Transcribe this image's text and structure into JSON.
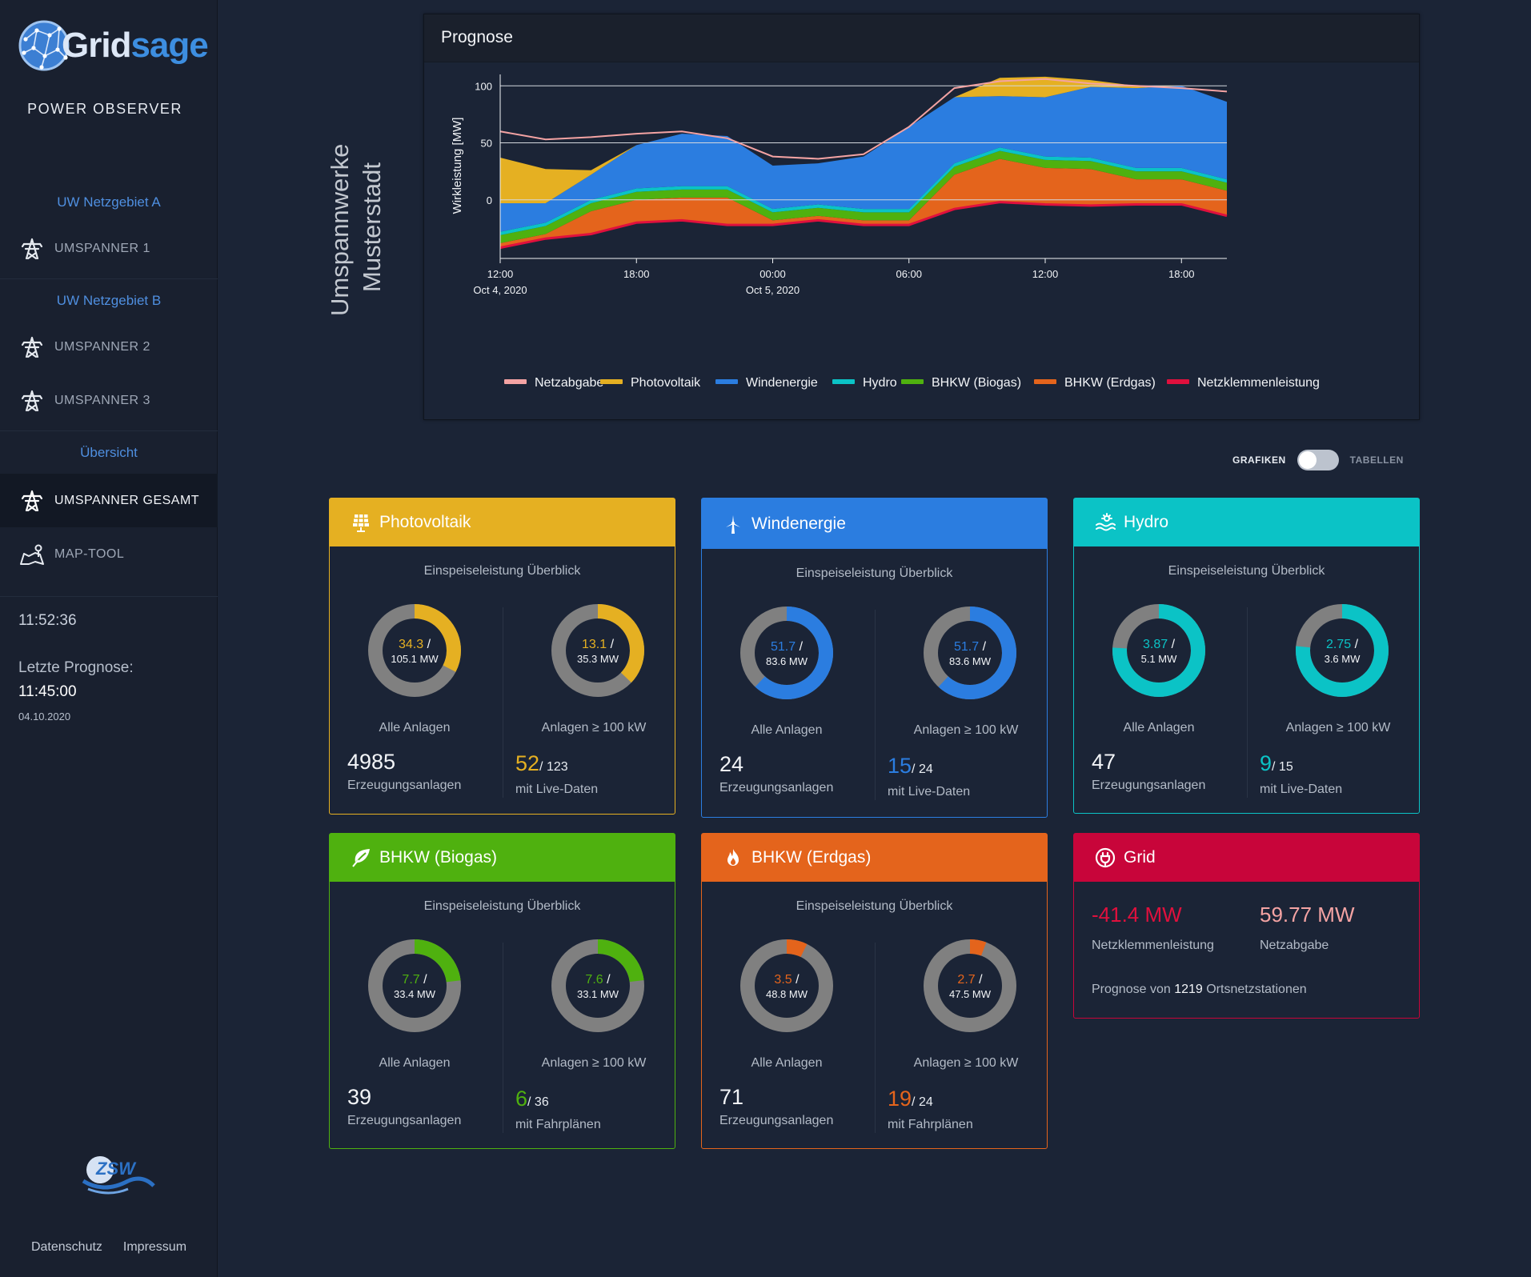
{
  "brand": {
    "logo_text_a": "Grid",
    "logo_text_b": "sage",
    "subtitle": "POWER OBSERVER"
  },
  "sidebar": {
    "groups": [
      "UW Netzgebiet A",
      "UW Netzgebiet B",
      "Übersicht"
    ],
    "items": [
      {
        "label": "UMSPANNER 1",
        "icon": "transmission-tower-icon"
      },
      {
        "label": "UMSPANNER 2",
        "icon": "transmission-tower-icon"
      },
      {
        "label": "UMSPANNER 3",
        "icon": "transmission-tower-icon"
      },
      {
        "label": "UMSPANNER GESAMT",
        "icon": "transmission-tower-icon",
        "active": true
      },
      {
        "label": "MAP-TOOL",
        "icon": "map-pin-icon"
      }
    ],
    "clock": "11:52:36",
    "last_forecast_label": "Letzte Prognose:",
    "last_forecast_time": "11:45:00",
    "last_forecast_date": "04.10.2020",
    "partner_logo": "zsw-logo",
    "footer": {
      "privacy": "Datenschutz",
      "imprint": "Impressum"
    }
  },
  "page_title": {
    "line1": "Umspannwerke",
    "line2": "Musterstadt"
  },
  "forecast": {
    "title": "Prognose",
    "ylabel": "Wirkleistung [MW]",
    "yticks": [
      "100",
      "50",
      "0"
    ],
    "xticks": [
      {
        "time": "12:00",
        "date": "Oct 4, 2020"
      },
      {
        "time": "18:00",
        "date": ""
      },
      {
        "time": "00:00",
        "date": "Oct 5, 2020"
      },
      {
        "time": "06:00",
        "date": ""
      },
      {
        "time": "12:00",
        "date": ""
      },
      {
        "time": "18:00",
        "date": ""
      }
    ],
    "legend": [
      {
        "name": "Netzabgabe",
        "color": "#f4a3a3"
      },
      {
        "name": "Photovoltaik",
        "color": "#e5b022"
      },
      {
        "name": "Windenergie",
        "color": "#2b7de0"
      },
      {
        "name": "Hydro",
        "color": "#0bc3c6"
      },
      {
        "name": "BHKW (Biogas)",
        "color": "#4fb10f"
      },
      {
        "name": "BHKW (Erdgas)",
        "color": "#e4641c"
      },
      {
        "name": "Netzklemmenleistung",
        "color": "#e0103d"
      }
    ]
  },
  "chart_data": {
    "type": "area",
    "x": [
      "2020-10-04 12:00",
      "2020-10-04 14:00",
      "2020-10-04 16:00",
      "2020-10-04 18:00",
      "2020-10-04 20:00",
      "2020-10-04 22:00",
      "2020-10-05 00:00",
      "2020-10-05 02:00",
      "2020-10-05 04:00",
      "2020-10-05 06:00",
      "2020-10-05 08:00",
      "2020-10-05 10:00",
      "2020-10-05 12:00",
      "2020-10-05 14:00",
      "2020-10-05 16:00",
      "2020-10-05 18:00",
      "2020-10-05 20:00"
    ],
    "ylim": [
      -50,
      110
    ],
    "ylabel": "Wirkleistung [MW]",
    "series": [
      {
        "name": "Netzklemmenleistung",
        "values": [
          -42,
          -34,
          -30,
          -20,
          -18,
          -22,
          -22,
          -18,
          -22,
          -22,
          -8,
          -2,
          -4,
          -5,
          -4,
          -4,
          -14
        ]
      },
      {
        "name": "BHKW (Erdgas)",
        "values": [
          4,
          4,
          20,
          20,
          20,
          24,
          4,
          4,
          4,
          4,
          30,
          38,
          32,
          32,
          22,
          22,
          22
        ]
      },
      {
        "name": "BHKW (Biogas)",
        "values": [
          7,
          7,
          7,
          7,
          7,
          7,
          7,
          7,
          7,
          7,
          7,
          7,
          7,
          7,
          7,
          7,
          7
        ]
      },
      {
        "name": "Hydro",
        "values": [
          3,
          3,
          3,
          3,
          3,
          3,
          3,
          3,
          3,
          3,
          3,
          3,
          3,
          3,
          3,
          3,
          3
        ]
      },
      {
        "name": "Windenergie",
        "values": [
          25,
          17,
          22,
          38,
          46,
          44,
          38,
          36,
          46,
          72,
          58,
          45,
          52,
          62,
          70,
          72,
          68
        ]
      },
      {
        "name": "Photovoltaik",
        "values": [
          40,
          30,
          4,
          0,
          0,
          0,
          0,
          0,
          0,
          0,
          0,
          16,
          18,
          6,
          2,
          0,
          0
        ]
      },
      {
        "name": "Netzabgabe",
        "values": [
          60,
          53,
          55,
          58,
          60,
          54,
          38,
          36,
          40,
          64,
          98,
          104,
          106,
          102,
          100,
          98,
          95
        ]
      }
    ]
  },
  "view_toggle": {
    "left": "GRAFIKEN",
    "right": "TABELLEN",
    "state": "GRAFIKEN"
  },
  "cards": [
    {
      "key": "pv",
      "title": "Photovoltaik",
      "icon": "solar-panel-icon",
      "color": "#e5b022",
      "subtitle": "Einspeiseleistung Überblick",
      "d1": {
        "val": "34.3",
        "max": "105.1 MW",
        "fraction": 0.326,
        "label": "Alle Anlagen"
      },
      "d2": {
        "val": "13.1",
        "max": "35.3 MW",
        "fraction": 0.371,
        "label": "Anlagen ≥ 100 kW"
      },
      "count": "4985",
      "count_label": "Erzeugungsanlagen",
      "live": "52",
      "live_total": "/ 123",
      "live_label": "mit Live-Daten"
    },
    {
      "key": "wind",
      "title": "Windenergie",
      "icon": "wind-turbine-icon",
      "color": "#2b7de0",
      "subtitle": "Einspeiseleistung Überblick",
      "d1": {
        "val": "51.7",
        "max": "83.6 MW",
        "fraction": 0.618,
        "label": "Alle Anlagen"
      },
      "d2": {
        "val": "51.7",
        "max": "83.6 MW",
        "fraction": 0.618,
        "label": "Anlagen ≥ 100 kW"
      },
      "count": "24",
      "count_label": "Erzeugungsanlagen",
      "live": "15",
      "live_total": "/ 24",
      "live_label": "mit Live-Daten"
    },
    {
      "key": "hydro",
      "title": "Hydro",
      "icon": "hydro-wave-icon",
      "color": "#0bc3c6",
      "subtitle": "Einspeiseleistung Überblick",
      "d1": {
        "val": "3.87",
        "max": "5.1 MW",
        "fraction": 0.759,
        "label": "Alle Anlagen"
      },
      "d2": {
        "val": "2.75",
        "max": "3.6 MW",
        "fraction": 0.764,
        "label": "Anlagen ≥ 100 kW"
      },
      "count": "47",
      "count_label": "Erzeugungsanlagen",
      "live": "9",
      "live_total": "/ 15",
      "live_label": "mit Live-Daten"
    },
    {
      "key": "biogas",
      "title": "BHKW (Biogas)",
      "icon": "leaf-icon",
      "color": "#4fb10f",
      "subtitle": "Einspeiseleistung Überblick",
      "d1": {
        "val": "7.7",
        "max": "33.4 MW",
        "fraction": 0.231,
        "label": "Alle Anlagen"
      },
      "d2": {
        "val": "7.6",
        "max": "33.1 MW",
        "fraction": 0.23,
        "label": "Anlagen ≥ 100 kW"
      },
      "count": "39",
      "count_label": "Erzeugungsanlagen",
      "live": "6",
      "live_total": "/ 36",
      "live_label": "mit Fahrplänen"
    },
    {
      "key": "erdgas",
      "title": "BHKW (Erdgas)",
      "icon": "flame-icon",
      "color": "#e4641c",
      "subtitle": "Einspeiseleistung Überblick",
      "d1": {
        "val": "3.5",
        "max": "48.8 MW",
        "fraction": 0.072,
        "label": "Alle Anlagen"
      },
      "d2": {
        "val": "2.7",
        "max": "47.5 MW",
        "fraction": 0.057,
        "label": "Anlagen ≥ 100 kW"
      },
      "count": "71",
      "count_label": "Erzeugungsanlagen",
      "live": "19",
      "live_total": "/ 24",
      "live_label": "mit Fahrplänen"
    }
  ],
  "grid": {
    "title": "Grid",
    "icon": "plug-icon",
    "color": "#c8053a",
    "netz_value": "-41.4 MW",
    "netz_label": "Netzklemmenleistung",
    "netz_color": "#e0103d",
    "abgabe_value": "59.77 MW",
    "abgabe_label": "Netzabgabe",
    "abgabe_color": "#f4a3a3",
    "footer_pre": "Prognose von",
    "footer_count": "1219",
    "footer_post": "Ortsnetzstationen"
  }
}
